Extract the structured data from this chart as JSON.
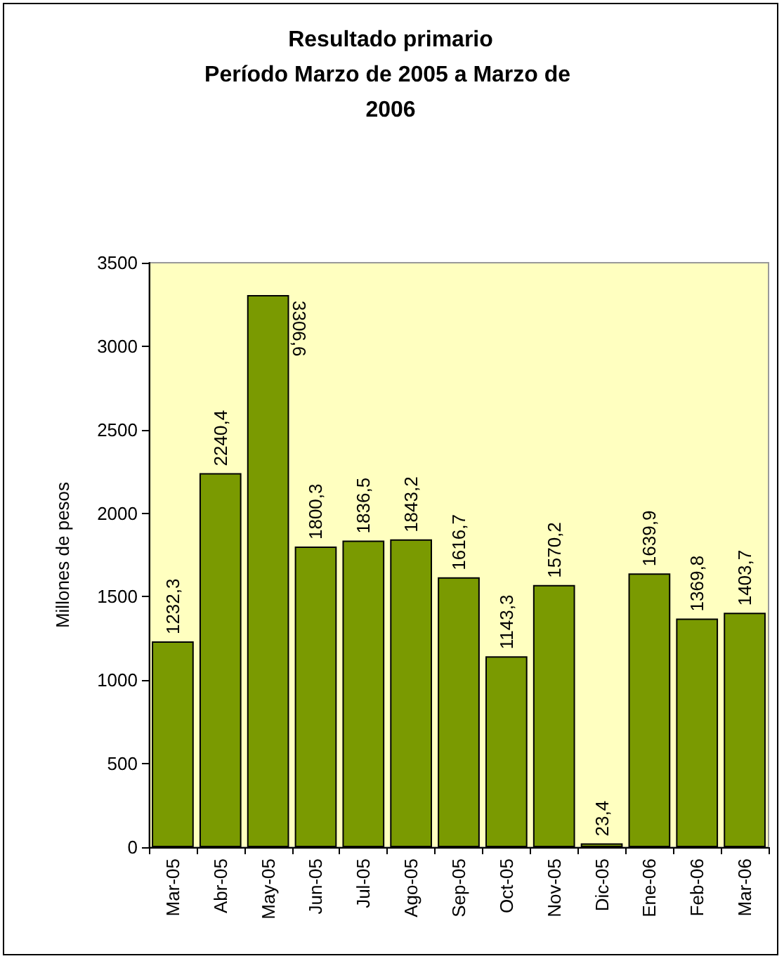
{
  "chart_data": {
    "type": "bar",
    "title": "Resultado primario\nPeríodo Marzo de 2005 a Marzo de 2006",
    "ylabel": "Millones de pesos",
    "categories": [
      "Mar-05",
      "Abr-05",
      "May-05",
      "Jun-05",
      "Jul-05",
      "Ago-05",
      "Sep-05",
      "Oct-05",
      "Nov-05",
      "Dic-05",
      "Ene-06",
      "Feb-06",
      "Mar-06"
    ],
    "values": [
      1232.3,
      2240.4,
      3306.6,
      1800.3,
      1836.5,
      1843.2,
      1616.7,
      1143.3,
      1570.2,
      23.4,
      1639.9,
      1369.8,
      1403.7
    ],
    "value_labels": [
      "1232,3",
      "2240,4",
      "3306,6",
      "1800,3",
      "1836,5",
      "1843,2",
      "1616,7",
      "1143,3",
      "1570,2",
      "23,4",
      "1639,9",
      "1369,8",
      "1403,7"
    ],
    "color": "#7a9a01",
    "ylim": [
      0,
      3500
    ],
    "yticks": [
      0,
      500,
      1000,
      1500,
      2000,
      2500,
      3000,
      3500
    ],
    "grid": false
  }
}
